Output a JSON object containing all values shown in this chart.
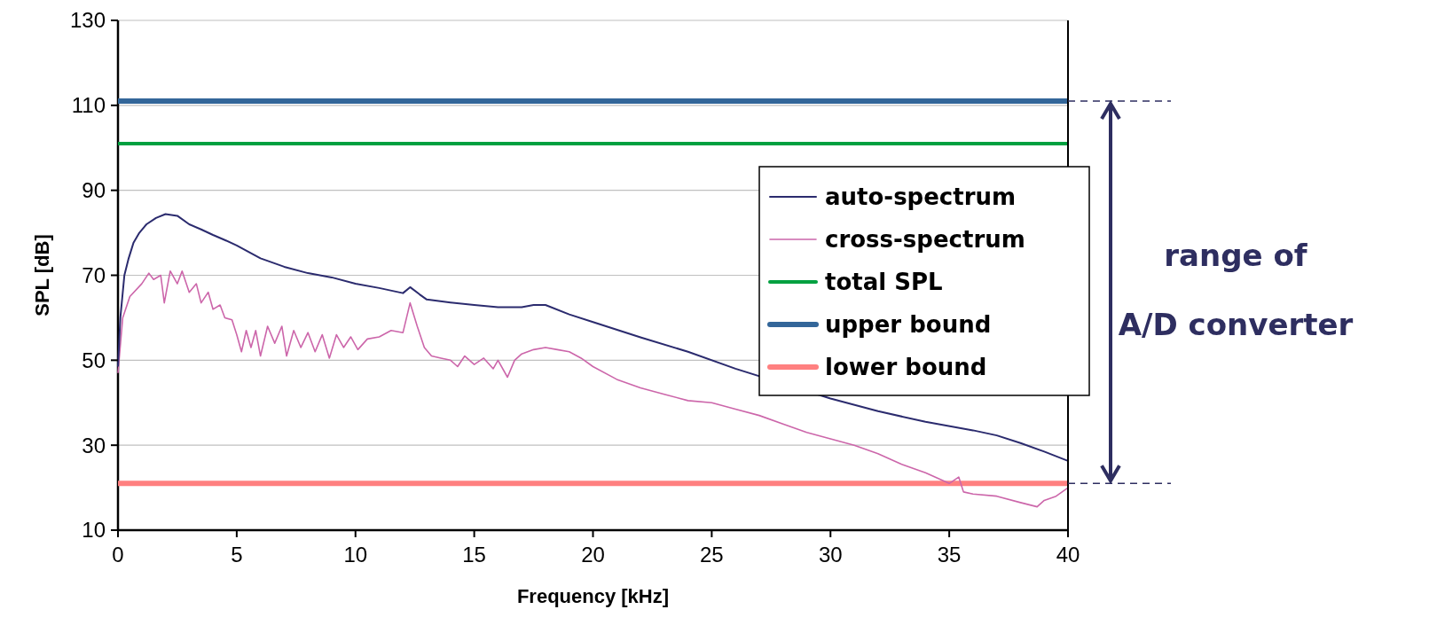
{
  "chart_data": {
    "type": "line",
    "xlabel": "Frequency [kHz]",
    "ylabel": "SPL [dB]",
    "xlim": [
      0,
      40
    ],
    "xticks": [
      0,
      5,
      10,
      15,
      20,
      25,
      30,
      35,
      40
    ],
    "ylim": [
      10,
      130
    ],
    "yticks": [
      10,
      30,
      50,
      70,
      90,
      110,
      130
    ],
    "grid": "y",
    "legend": "right",
    "annotations": [
      "range of",
      "A/D converter"
    ],
    "series": [
      {
        "name": "auto-spectrum",
        "color": "#2b2b6e",
        "x": [
          0,
          0.1,
          0.27,
          0.45,
          0.65,
          0.9,
          1.2,
          1.6,
          2,
          2.5,
          3,
          3.5,
          4,
          4.5,
          5,
          6,
          7,
          8,
          9,
          10,
          11,
          12,
          12.3,
          12.7,
          13,
          14,
          15,
          16,
          17,
          17.5,
          18,
          19,
          20,
          22,
          24,
          26,
          30,
          32,
          34,
          36,
          37,
          38,
          39,
          40
        ],
        "values": [
          48.5,
          60,
          70,
          74,
          77.6,
          80,
          82,
          83.5,
          84.4,
          84,
          82,
          80.8,
          79.5,
          78.3,
          77,
          74,
          72,
          70.5,
          69.5,
          68,
          67,
          65.8,
          67.2,
          65.5,
          64.3,
          63.6,
          63,
          62.5,
          62.5,
          63,
          63,
          60.8,
          59,
          55.4,
          52,
          48,
          41,
          38,
          35.5,
          33.5,
          32.3,
          30.5,
          28.5,
          26.3
        ]
      },
      {
        "name": "cross-spectrum",
        "color": "#cc66aa",
        "x": [
          0,
          0.2,
          0.5,
          1,
          1.3,
          1.5,
          1.8,
          1.95,
          2.2,
          2.5,
          2.7,
          3,
          3.3,
          3.5,
          3.8,
          4,
          4.3,
          4.5,
          4.8,
          5,
          5.2,
          5.4,
          5.6,
          5.8,
          6,
          6.3,
          6.6,
          6.9,
          7.1,
          7.4,
          7.7,
          8,
          8.3,
          8.6,
          8.9,
          9.2,
          9.5,
          9.8,
          10.1,
          10.5,
          11,
          11.5,
          12,
          12.3,
          12.6,
          12.9,
          13.2,
          13.6,
          14,
          14.3,
          14.6,
          15,
          15.4,
          15.8,
          16,
          16.4,
          16.7,
          17,
          17.5,
          18,
          18.5,
          19,
          19.5,
          20,
          21,
          22,
          23,
          24,
          25,
          26,
          27,
          28,
          29,
          30,
          31,
          32,
          33,
          34,
          35,
          35.4,
          35.6,
          36,
          37,
          38,
          38.7,
          39,
          39.5,
          40
        ],
        "values": [
          47,
          60,
          65,
          68,
          70.5,
          69,
          70,
          63.5,
          71,
          68,
          71,
          66,
          68,
          63.5,
          66,
          62,
          63,
          60,
          59.5,
          56,
          52,
          57,
          53,
          57,
          51,
          58,
          54,
          58,
          51,
          57,
          53,
          56.5,
          52,
          56,
          50.5,
          56,
          53,
          55.5,
          52.5,
          55,
          55.5,
          57,
          56.5,
          63.5,
          58,
          53,
          51,
          50.5,
          50,
          48.5,
          51,
          49,
          50.5,
          48,
          50,
          46,
          50,
          51.5,
          52.5,
          53,
          52.5,
          52,
          50.5,
          48.5,
          45.5,
          43.5,
          42,
          40.5,
          40,
          38.5,
          37,
          35,
          33,
          31.5,
          30,
          28,
          25.5,
          23.5,
          21,
          22.5,
          19,
          18.5,
          18,
          16.5,
          15.5,
          17,
          18,
          20
        ]
      },
      {
        "name": "total SPL",
        "color": "#00a040",
        "x": [
          0,
          40
        ],
        "values": [
          101,
          101
        ]
      },
      {
        "name": "upper bound",
        "color": "#336699",
        "x": [
          0,
          40
        ],
        "values": [
          111,
          111
        ]
      },
      {
        "name": "lower bound",
        "color": "#ff8080",
        "x": [
          0,
          40
        ],
        "values": [
          21,
          21
        ]
      }
    ]
  }
}
